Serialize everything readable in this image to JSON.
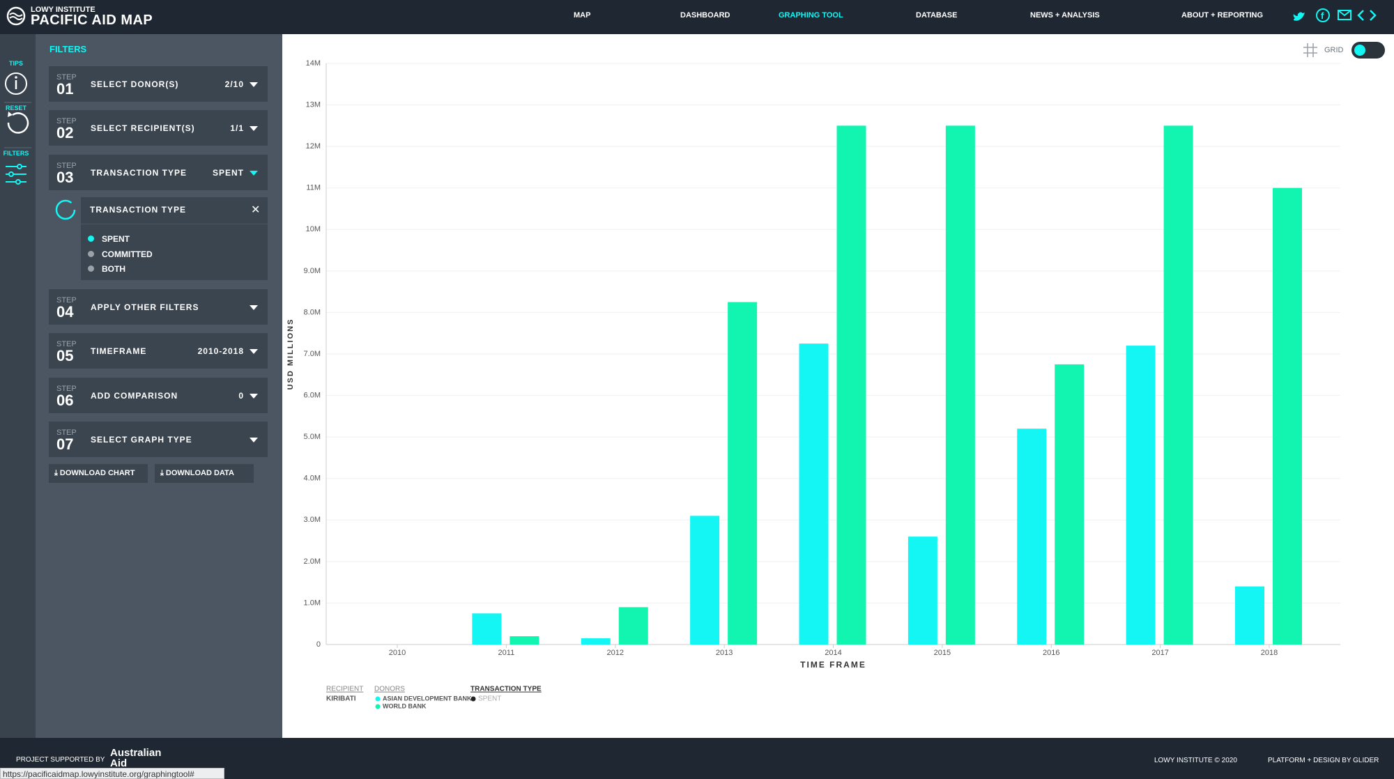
{
  "header": {
    "brand_top": "LOWY INSTITUTE",
    "brand": "PACIFIC AID MAP",
    "nav": [
      "MAP",
      "DASHBOARD",
      "GRAPHING TOOL",
      "DATABASE",
      "NEWS + ANALYSIS",
      "ABOUT + REPORTING"
    ]
  },
  "sidebar": {
    "tips": "TIPS",
    "reset": "RESET",
    "filters": "FILTERS"
  },
  "filters": {
    "title": "FILTERS",
    "steps": [
      {
        "step": "STEP",
        "number": "01",
        "label": "SELECT DONOR(S)",
        "value": "2/10"
      },
      {
        "step": "STEP",
        "number": "02",
        "label": "SELECT RECIPIENT(S)",
        "value": "1/1"
      },
      {
        "step": "STEP",
        "number": "03",
        "label": "TRANSACTION TYPE",
        "value": "SPENT"
      },
      {
        "step": "STEP",
        "number": "04",
        "label": "APPLY OTHER FILTERS"
      },
      {
        "step": "STEP",
        "number": "05",
        "label": "TIMEFRAME",
        "value": "2010-2018"
      },
      {
        "step": "STEP",
        "number": "06",
        "label": "ADD COMPARISON",
        "value": "0"
      },
      {
        "step": "STEP",
        "number": "07",
        "label": "SELECT GRAPH TYPE"
      }
    ],
    "panel": {
      "title": "TRANSACTION TYPE",
      "options": [
        "SPENT",
        "COMMITTED",
        "BOTH"
      ]
    },
    "buttons": [
      "DOWNLOAD CHART",
      "DOWNLOAD DATA"
    ]
  },
  "grid_label": "GRID",
  "chart_data": {
    "type": "bar",
    "xlabel": "TIME FRAME",
    "ylabel": "USD MILLIONS",
    "categories": [
      "2010",
      "2011",
      "2012",
      "2013",
      "2014",
      "2015",
      "2016",
      "2017",
      "2018"
    ],
    "series": [
      {
        "name": "ASIAN DEVELOPMENT BANK",
        "color": "#14f6f4",
        "values": [
          0,
          0.75,
          0.15,
          3.1,
          7.25,
          2.6,
          5.2,
          7.2,
          1.4
        ]
      },
      {
        "name": "WORLD BANK",
        "color": "#12f5b0",
        "values": [
          0,
          0.2,
          0.9,
          8.25,
          12.5,
          12.5,
          6.75,
          12.5,
          11.0
        ]
      }
    ],
    "ylim": [
      0,
      14
    ],
    "yticks": [
      0,
      {
        "value": 1,
        "label": "1.0M"
      },
      {
        "value": 2,
        "label": "2.0M"
      },
      {
        "value": 3,
        "label": "3.0M"
      },
      {
        "value": 4,
        "label": "4.0M"
      },
      {
        "value": 5,
        "label": "5.0M"
      },
      {
        "value": 6,
        "label": "6.0M"
      },
      {
        "value": 7,
        "label": "7.0M"
      },
      {
        "value": 8,
        "label": "8.0M"
      },
      {
        "value": 9,
        "label": "9.0M"
      },
      {
        "value": 10,
        "label": "10M"
      },
      {
        "value": 11,
        "label": "11M"
      },
      {
        "value": 12,
        "label": "12M"
      },
      {
        "value": 13,
        "label": "13M"
      },
      {
        "value": 14,
        "label": "14M"
      }
    ],
    "grid": true
  },
  "legend": {
    "recipient_label": "RECIPIENT",
    "recipient": "KIRIBATI",
    "donors_label": "DONORS",
    "transaction_label": "TRANSACTION TYPE",
    "transaction": "SPENT"
  },
  "footer": {
    "supported": "PROJECT SUPPORTED BY",
    "sponsor_top": "Australian",
    "sponsor_bottom": "Aid",
    "copyright": "LOWY INSTITUTE © 2020",
    "credit": "PLATFORM + DESIGN BY GLIDER"
  },
  "status_url": "https://pacificaidmap.lowyinstitute.org/graphingtool#"
}
